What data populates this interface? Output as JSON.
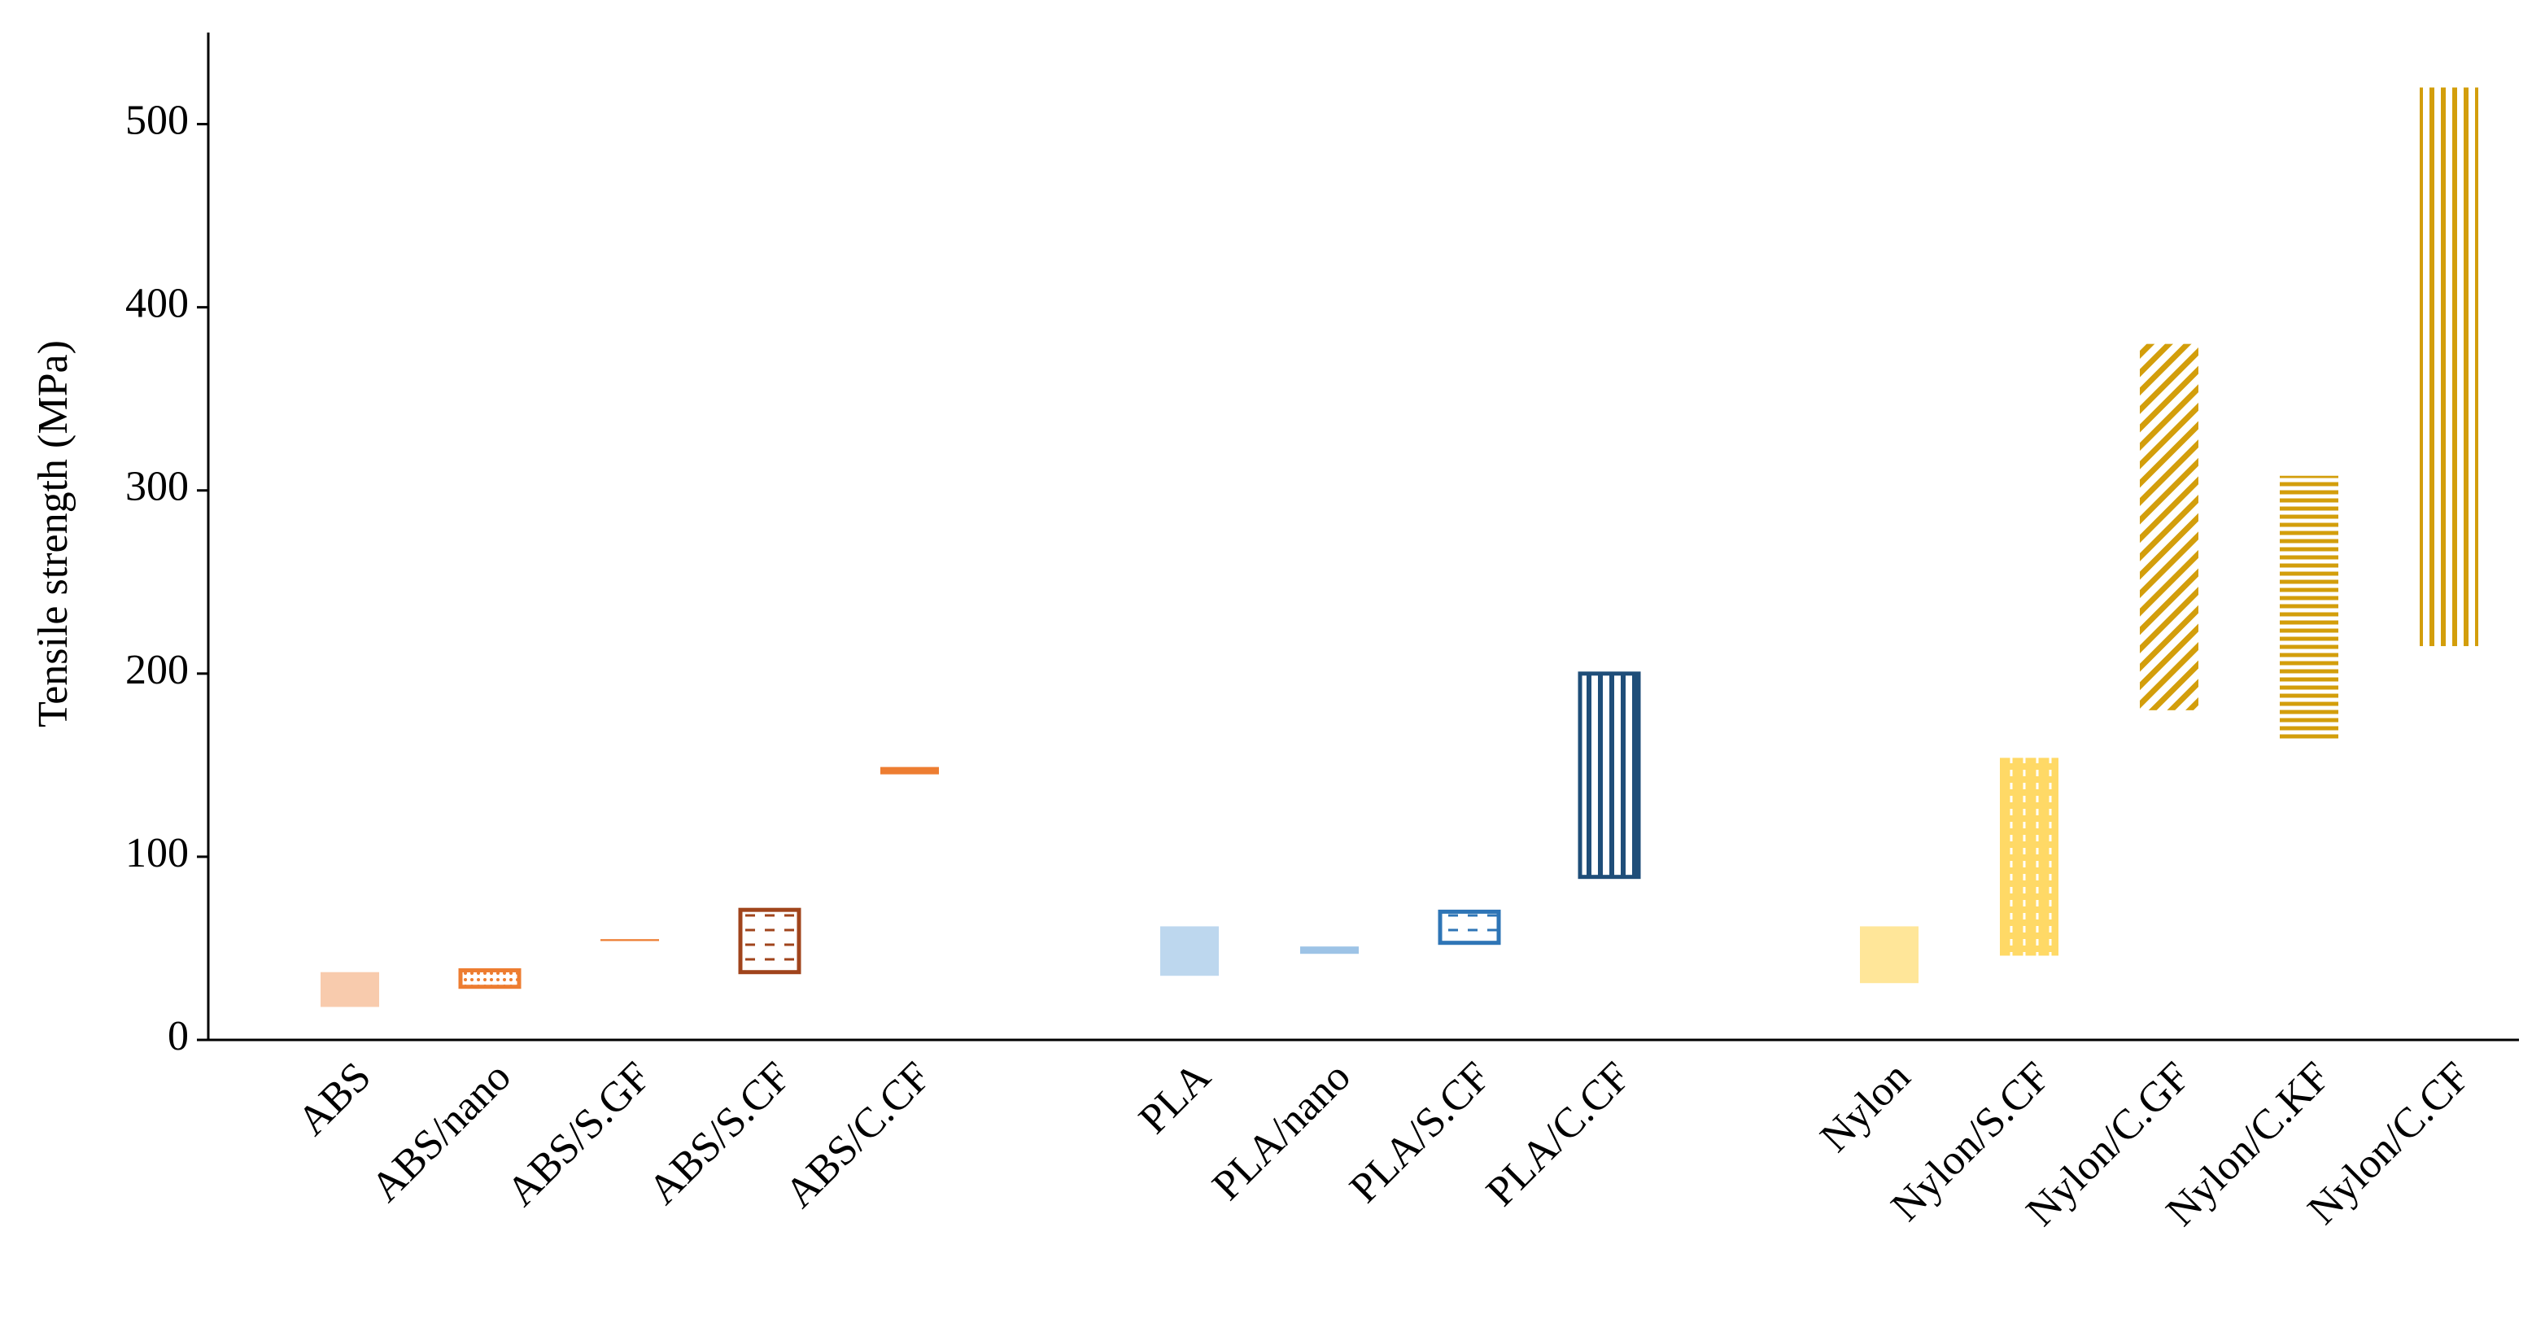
{
  "chart_data": {
    "type": "range_bar",
    "y_label": "Tensile strength (MPa)",
    "categories": [
      "ABS",
      "ABS/nano",
      "ABS/S.GF",
      "ABS/S.CF",
      "ABS/C.CF",
      null,
      "PLA",
      "PLA/nano",
      "PLA/S.CF",
      "PLA/C.CF",
      null,
      "Nylon",
      "Nylon/S.CF",
      "Nylon/C.GF",
      "Nylon/C.KF",
      "Nylon/C.CF"
    ],
    "values": [
      [
        18,
        37
      ],
      [
        29,
        38
      ],
      [
        54,
        55
      ],
      [
        37,
        71
      ],
      [
        145,
        149
      ],
      null,
      [
        35,
        62
      ],
      [
        47,
        51
      ],
      [
        53,
        70
      ],
      [
        89,
        200
      ],
      null,
      [
        31,
        62
      ],
      [
        46,
        154
      ],
      [
        180,
        380
      ],
      [
        164,
        308
      ],
      [
        215,
        520
      ]
    ],
    "colors": [
      "#f8cbad",
      "#ed7d31",
      "#ed7d31",
      "#a0441c",
      "#ed7d31",
      null,
      "#bdd7ee",
      "#9dc3e6",
      "#2e75b6",
      "#1f4e79",
      null,
      "#ffe699",
      "#ffd966",
      "#d39e0b",
      "#d39e0b",
      "#d39e0b"
    ],
    "patterns": [
      "solid",
      "outline-dots",
      "solid",
      "outline-dashes",
      "solid",
      null,
      "solid",
      "solid",
      "outline-dashes",
      "outline-vstripes",
      null,
      "solid",
      "dashes",
      "diagonal",
      "hstripes",
      "vstripes"
    ],
    "ylim": [
      0,
      550
    ],
    "yticks": [
      0,
      100,
      200,
      300,
      400,
      500
    ],
    "grid": false
  }
}
